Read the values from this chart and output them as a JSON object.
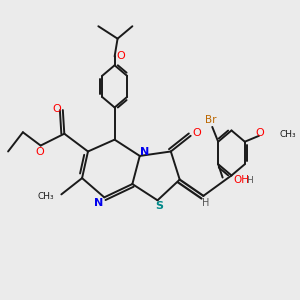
{
  "background_color": "#ebebeb",
  "bond_color": "#1a1a1a",
  "atom_colors": {
    "O": "#ff0000",
    "N": "#0000ee",
    "S": "#008888",
    "Br": "#bb6600",
    "H": "#555555",
    "C": "#1a1a1a"
  },
  "xlim": [
    0,
    10
  ],
  "ylim": [
    0,
    10
  ],
  "figsize": [
    3.0,
    3.0
  ],
  "dpi": 100
}
